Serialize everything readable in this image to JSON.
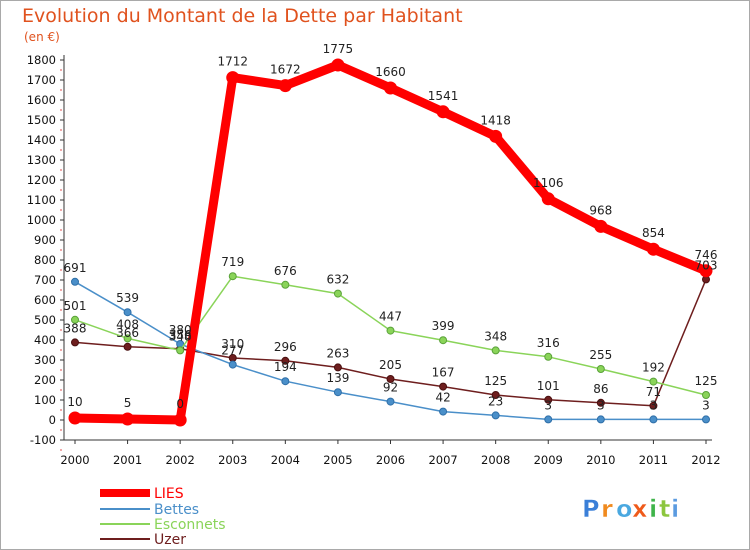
{
  "chart_data": {
    "type": "line",
    "title": "Evolution du Montant de la Dette par Habitant",
    "subtitle": "(en €)",
    "x": [
      "2000",
      "2001",
      "2002",
      "2003",
      "2004",
      "2005",
      "2006",
      "2007",
      "2008",
      "2009",
      "2010",
      "2011",
      "2012"
    ],
    "ylim": [
      -100,
      1800
    ],
    "yticks": [
      -100,
      0,
      100,
      200,
      300,
      400,
      500,
      600,
      700,
      800,
      900,
      1000,
      1100,
      1200,
      1300,
      1400,
      1500,
      1600,
      1700,
      1800
    ],
    "grid": false,
    "legend_position": "bottom-left",
    "series": [
      {
        "name": "LIES",
        "color": "#ff0000",
        "values": [
          10,
          5,
          0,
          1712,
          1672,
          1775,
          1660,
          1541,
          1418,
          1106,
          968,
          854,
          746
        ]
      },
      {
        "name": "Bettes",
        "color": "#4a8fc9",
        "values": [
          691,
          539,
          380,
          277,
          194,
          139,
          92,
          42,
          23,
          3,
          3,
          3,
          3
        ]
      },
      {
        "name": "Esconnets",
        "color": "#8ad459",
        "values": [
          501,
          408,
          348,
          719,
          676,
          632,
          447,
          399,
          348,
          316,
          255,
          192,
          125
        ]
      },
      {
        "name": "Uzer",
        "color": "#6e1e1e",
        "values": [
          388,
          366,
          356,
          310,
          296,
          263,
          205,
          167,
          125,
          101,
          86,
          71,
          703
        ]
      }
    ]
  },
  "logo": {
    "text": "Proxiti",
    "letter_colors": [
      "#3a7fd8",
      "#f08a1e",
      "#4aa8e0",
      "#ef5a1a",
      "#3fb44a",
      "#8cc63e",
      "#5b9be0"
    ]
  }
}
